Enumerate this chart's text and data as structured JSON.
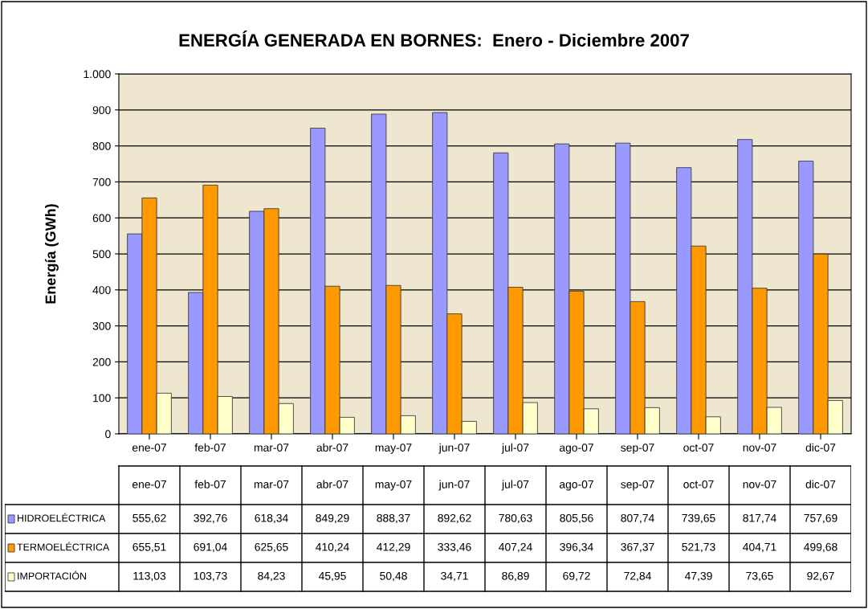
{
  "chart_data": {
    "type": "bar",
    "title": "ENERGÍA GENERADA EN BORNES:  Enero - Diciembre 2007",
    "ylabel": "Energía (GWh)",
    "categories": [
      "ene-07",
      "feb-07",
      "mar-07",
      "abr-07",
      "may-07",
      "jun-07",
      "jul-07",
      "ago-07",
      "sep-07",
      "oct-07",
      "nov-07",
      "dic-07"
    ],
    "series": [
      {
        "name": "HIDROELÉCTRICA",
        "color": "#9999ff",
        "values": [
          555.62,
          392.76,
          618.34,
          849.29,
          888.37,
          892.62,
          780.63,
          805.56,
          807.74,
          739.65,
          817.74,
          757.69
        ],
        "value_labels": [
          "555,62",
          "392,76",
          "618,34",
          "849,29",
          "888,37",
          "892,62",
          "780,63",
          "805,56",
          "807,74",
          "739,65",
          "817,74",
          "757,69"
        ]
      },
      {
        "name": "TERMOELÉCTRICA",
        "color": "#ff9900",
        "values": [
          655.51,
          691.04,
          625.65,
          410.24,
          412.29,
          333.46,
          407.24,
          396.34,
          367.37,
          521.73,
          404.71,
          499.68
        ],
        "value_labels": [
          "655,51",
          "691,04",
          "625,65",
          "410,24",
          "412,29",
          "333,46",
          "407,24",
          "396,34",
          "367,37",
          "521,73",
          "404,71",
          "499,68"
        ]
      },
      {
        "name": "IMPORTACIÓN",
        "color": "#ffffcc",
        "values": [
          113.03,
          103.73,
          84.23,
          45.95,
          50.48,
          34.71,
          86.89,
          69.72,
          72.84,
          47.39,
          73.65,
          92.67
        ],
        "value_labels": [
          "113,03",
          "103,73",
          "84,23",
          "45,95",
          "50,48",
          "34,71",
          "86,89",
          "69,72",
          "72,84",
          "47,39",
          "73,65",
          "92,67"
        ]
      }
    ],
    "ylim": [
      0,
      1000
    ],
    "yticks": [
      0,
      100,
      200,
      300,
      400,
      500,
      600,
      700,
      800,
      900,
      {
        "value": 1000,
        "label": "1.000"
      }
    ],
    "grid": "y",
    "legend": "bottom"
  }
}
